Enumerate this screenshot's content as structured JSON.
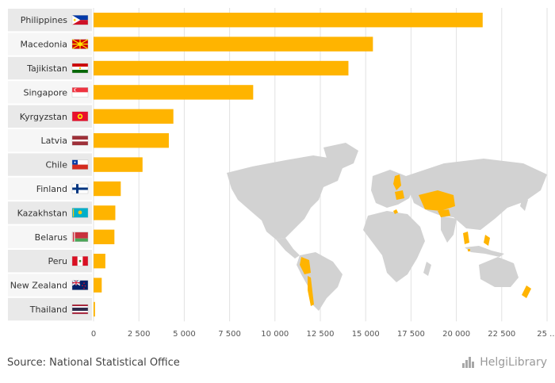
{
  "chart_data": {
    "type": "bar",
    "orientation": "horizontal",
    "categories": [
      "Philippines",
      "Macedonia",
      "Tajikistan",
      "Singapore",
      "Kyrgyzstan",
      "Latvia",
      "Chile",
      "Finland",
      "Kazakhstan",
      "Belarus",
      "Peru",
      "New Zealand",
      "Thailand"
    ],
    "values": [
      21450,
      15400,
      14050,
      8800,
      4400,
      4150,
      2700,
      1500,
      1200,
      1150,
      650,
      450,
      80
    ],
    "xlim": [
      0,
      25000
    ],
    "xticks": [
      "0",
      "2 500",
      "5 000",
      "7 500",
      "10 000",
      "12 500",
      "15 000",
      "17 500",
      "20 000",
      "22 500",
      "25 ..."
    ],
    "bar_color": "#ffb400",
    "grid": true,
    "map_highlight_color": "#ffb400",
    "map_base_color": "#d2d2d2"
  },
  "footer": {
    "source": "Source: National Statistical Office",
    "brand": "HelgiLibrary"
  }
}
